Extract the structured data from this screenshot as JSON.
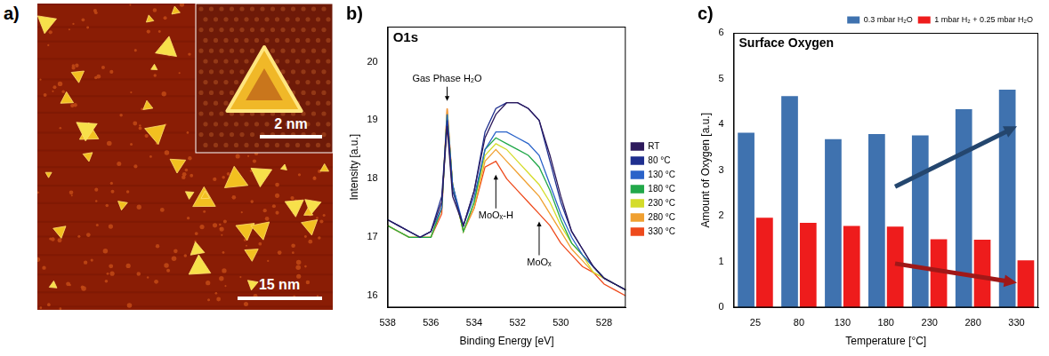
{
  "image_panel": {
    "panel_label": "a)",
    "scale_bar": "15 nm",
    "inset_scale_bar": "2 nm"
  },
  "chart_data": [
    {
      "panel_label": "b)",
      "type": "line",
      "title": "O1s",
      "x_label": "Binding Energy [eV]",
      "y_label": "Intensity [a.u.]",
      "x": [
        538,
        537.5,
        537,
        536.5,
        536,
        535.5,
        535.25,
        535,
        534.5,
        534,
        533.5,
        533,
        532.5,
        532,
        531.5,
        531,
        530.5,
        530,
        529.5,
        529,
        528.5,
        528,
        527.5,
        527
      ],
      "series": [
        {
          "name": "RT",
          "color": "#2d1a5c",
          "values": [
            17.3,
            17.2,
            17.1,
            17.0,
            17.1,
            17.6,
            18.9,
            17.7,
            17.2,
            17.8,
            18.7,
            19.1,
            19.3,
            19.3,
            19.2,
            19.0,
            18.4,
            17.7,
            17.1,
            16.8,
            16.5,
            16.3,
            16.2,
            16.1
          ]
        },
        {
          "name": "80 °C",
          "color": "#1f2f8f",
          "values": [
            17.3,
            17.2,
            17.1,
            17.0,
            17.1,
            17.7,
            19.0,
            17.8,
            17.2,
            17.8,
            18.8,
            19.2,
            19.3,
            19.3,
            19.2,
            19.0,
            18.3,
            17.6,
            17.1,
            16.8,
            16.5,
            16.3,
            16.2,
            16.1
          ]
        },
        {
          "name": "130 °C",
          "color": "#2a63c9",
          "values": [
            17.3,
            17.2,
            17.1,
            17.0,
            17.1,
            17.5,
            19.1,
            17.9,
            17.2,
            17.7,
            18.5,
            18.8,
            18.8,
            18.7,
            18.6,
            18.4,
            17.9,
            17.4,
            17.0,
            16.7,
            16.5,
            16.3,
            16.2,
            16.1
          ]
        },
        {
          "name": "180 °C",
          "color": "#22a84a",
          "values": [
            17.2,
            17.1,
            17.0,
            17.0,
            17.0,
            17.5,
            19.1,
            17.9,
            17.1,
            17.6,
            18.5,
            18.7,
            18.6,
            18.5,
            18.4,
            18.2,
            17.8,
            17.3,
            16.9,
            16.7,
            16.5,
            16.3,
            16.2,
            16.1
          ]
        },
        {
          "name": "230 °C",
          "color": "#d4dc2a",
          "values": [
            17.2,
            17.1,
            17.0,
            17.0,
            17.0,
            17.5,
            19.1,
            17.9,
            17.1,
            17.6,
            18.4,
            18.6,
            18.5,
            18.3,
            18.1,
            17.9,
            17.6,
            17.2,
            16.9,
            16.7,
            16.4,
            16.3,
            16.2,
            16.1
          ]
        },
        {
          "name": "280 °C",
          "color": "#f0a030",
          "values": [
            17.2,
            17.1,
            17.0,
            17.0,
            17.0,
            17.5,
            19.2,
            17.9,
            17.1,
            17.5,
            18.3,
            18.5,
            18.3,
            18.1,
            17.9,
            17.7,
            17.4,
            17.1,
            16.8,
            16.6,
            16.4,
            16.3,
            16.2,
            16.1
          ]
        },
        {
          "name": "330 °C",
          "color": "#ee4a1c",
          "values": [
            17.2,
            17.1,
            17.0,
            17.0,
            17.0,
            17.4,
            19.2,
            17.9,
            17.1,
            17.5,
            18.2,
            18.3,
            18.0,
            17.8,
            17.6,
            17.4,
            17.2,
            16.9,
            16.7,
            16.5,
            16.4,
            16.2,
            16.1,
            16.0
          ]
        }
      ],
      "xlim": [
        538,
        527
      ],
      "ylim": [
        15.8,
        20.6
      ],
      "xticks": [
        538,
        536,
        534,
        532,
        530,
        528
      ],
      "yticks": [
        16,
        17,
        18,
        19,
        20
      ],
      "grid": false,
      "legend": "right",
      "annotations": [
        {
          "text": "Gas Phase H₂O",
          "x": 535.25,
          "y": 19.3
        },
        {
          "text": "MoOₓ-H",
          "x": 533,
          "y": 18.1
        },
        {
          "text": "MoOₓ",
          "x": 531,
          "y": 17.3
        }
      ]
    },
    {
      "panel_label": "c)",
      "type": "bar",
      "title": "Surface Oxygen",
      "x_label": "Temperature [°C]",
      "y_label": "Amount of Oxygen [a.u.]",
      "categories": [
        "25",
        "80",
        "130",
        "180",
        "230",
        "280",
        "330"
      ],
      "series": [
        {
          "name": "0.3 mbar H₂O",
          "color": "#3f72af",
          "values": [
            3.82,
            4.62,
            3.68,
            3.79,
            3.76,
            4.33,
            4.76
          ]
        },
        {
          "name": "1 mbar H₂ + 0.25 mbar H₂O",
          "color": "#ee1c1c",
          "values": [
            1.96,
            1.85,
            1.78,
            1.77,
            1.49,
            1.48,
            1.03
          ]
        }
      ],
      "ylim": [
        0,
        6
      ],
      "yticks": [
        0,
        1,
        2,
        3,
        4,
        5,
        6
      ],
      "grid": false,
      "legend": "top right"
    }
  ]
}
